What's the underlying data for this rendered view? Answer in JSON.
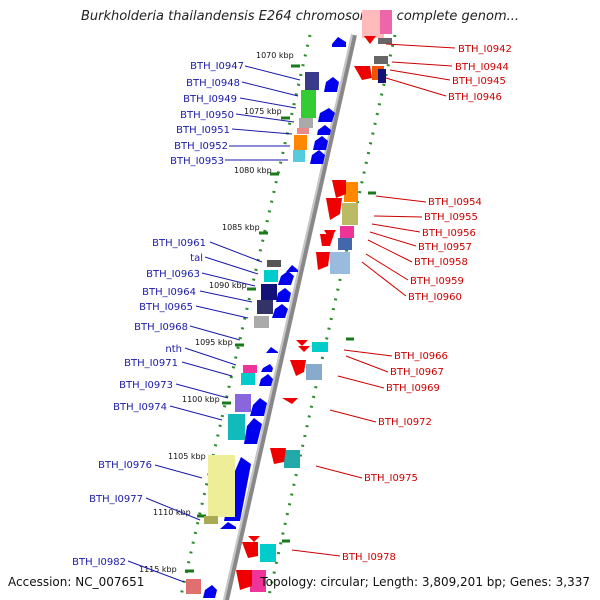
{
  "title": "Burkholderia thailandensis E264 chromosome I, complete genom...",
  "footer": {
    "accession": "Accession: NC_007651",
    "topology": "Topology: circular; Length: 3,809,201 bp; Genes: 3,337"
  },
  "kbp_labels": [
    "1070 kbp",
    "1075 kbp",
    "1080 kbp",
    "1085 kbp",
    "1090 kbp",
    "1095 kbp",
    "1100 kbp",
    "1105 kbp",
    "1110 kbp",
    "1115 kbp"
  ],
  "genes_left": [
    "BTH_I0947",
    "BTH_I0948",
    "BTH_I0949",
    "BTH_I0950",
    "BTH_I0951",
    "BTH_I0952",
    "BTH_I0953",
    "BTH_I0961",
    "tal",
    "BTH_I0963",
    "BTH_I0964",
    "BTH_I0965",
    "BTH_I0968",
    "nth",
    "BTH_I0971",
    "BTH_I0973",
    "BTH_I0974",
    "BTH_I0976",
    "BTH_I0977",
    "BTH_I0982"
  ],
  "genes_right": [
    "BTH_I0942",
    "BTH_I0944",
    "BTH_I0945",
    "BTH_I0946",
    "BTH_I0954",
    "BTH_I0955",
    "BTH_I0956",
    "BTH_I0957",
    "BTH_I0958",
    "BTH_I0959",
    "BTH_I0960",
    "BTH_I0966",
    "BTH_I0967",
    "BTH_I0969",
    "BTH_I0972",
    "BTH_I0975",
    "BTH_I0978"
  ],
  "colors": {
    "forward_label": "#1a1aa8",
    "reverse_label": "#cc0000",
    "forward_arrow": "#0000ee",
    "reverse_arrow": "#ee0000",
    "backbone": "#888888",
    "track_dots": "#2e8b2e"
  }
}
